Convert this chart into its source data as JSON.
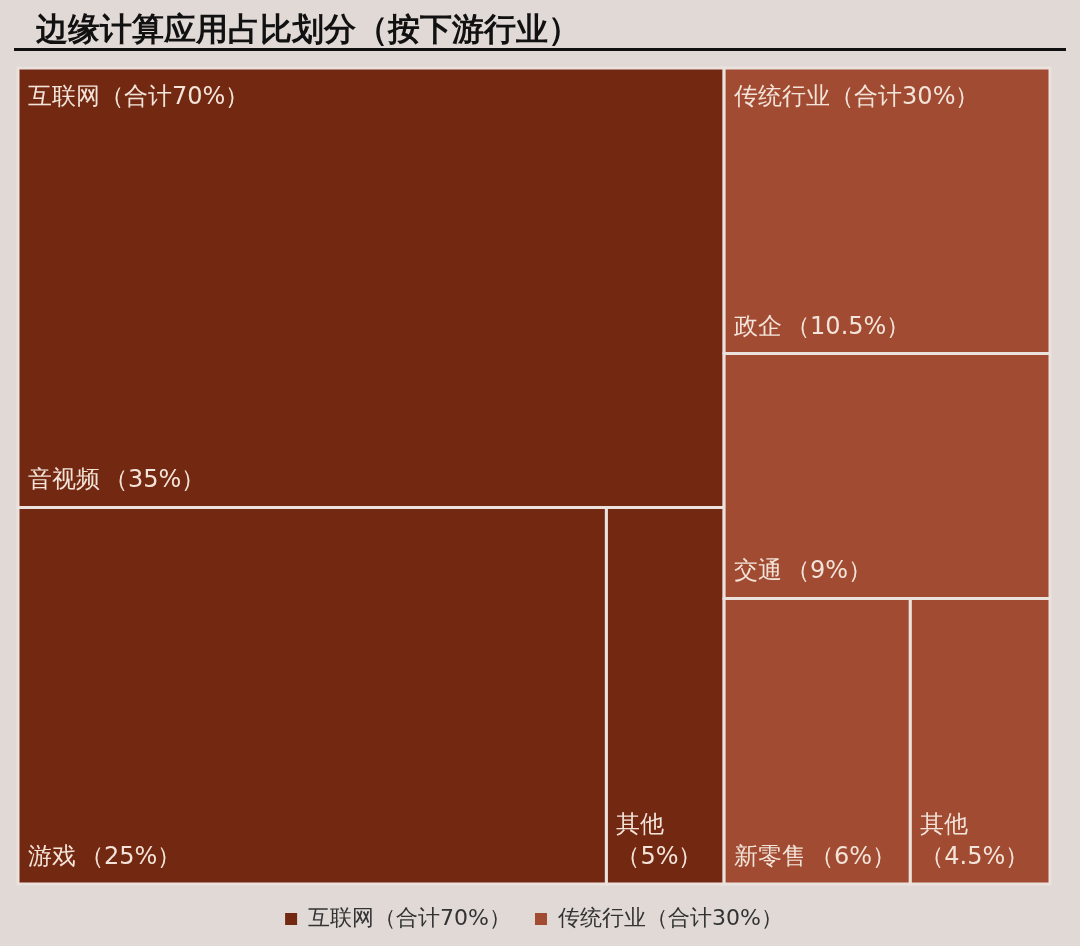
{
  "chart_data": {
    "type": "other",
    "title": "边缘计算应用占比划分（按下游行业）",
    "categories": [
      "音视频",
      "游戏",
      "其他",
      "政企",
      "交通",
      "新零售",
      "其他"
    ],
    "series": [
      {
        "name": "互联网（合计70%）",
        "color": "#722811",
        "values": [
          35,
          25,
          5,
          null,
          null,
          null,
          null
        ],
        "value_labels": [
          "（35%）",
          "（25%）",
          "（5%）",
          null,
          null,
          null,
          null
        ]
      },
      {
        "name": "传统行业（合计30%）",
        "color": "#a04b32",
        "values": [
          null,
          null,
          null,
          10.5,
          9,
          6,
          4.5
        ],
        "value_labels": [
          null,
          null,
          null,
          "（10.5%）",
          "（9%）",
          "（6%）",
          "（4.5%）"
        ]
      }
    ],
    "legend": "bottom"
  }
}
